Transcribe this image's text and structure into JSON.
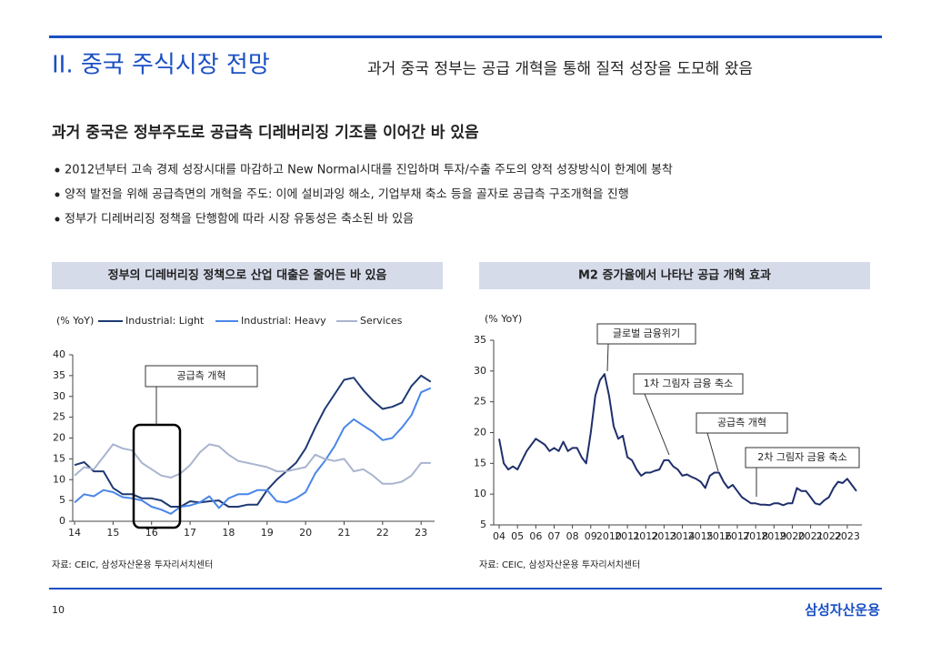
{
  "header": {
    "title": "II. 중국 주식시장 전망",
    "subtitle": "과거 중국 정부는 공급 개혁을 통해 질적 성장을 도모해 왔음"
  },
  "heading": "과거 중국은 정부주도로 공급측 디레버리징 기조를 이어간 바 있음",
  "bullets": [
    "2012년부터 고속 경제 성장시대를 마감하고 New Normal시대를 진입하며 투자/수출 주도의 양적 성장방식이 한계에 봉착",
    "양적 발전을 위해 공급측면의 개혁을 주도: 이에 설비과잉 해소, 기업부채 축소 등을 골자로 공급측 구조개혁을 진행",
    "정부가 디레버리징 정책을 단행함에 따라 시장 유동성은 축소된 바 있음"
  ],
  "chart_data": [
    {
      "type": "line",
      "title": "정부의 디레버리징 정책으로 산업 대출은 줄어든 바 있음",
      "ylabel": "(% YoY)",
      "source": "자료: CEIC, 삼성자산운용 투자리서치센터",
      "x": [
        14,
        14.25,
        14.5,
        14.75,
        15,
        15.25,
        15.5,
        15.75,
        16,
        16.25,
        16.5,
        16.75,
        17,
        17.25,
        17.5,
        17.75,
        18,
        18.25,
        18.5,
        18.75,
        19,
        19.25,
        19.5,
        19.75,
        20,
        20.25,
        20.5,
        20.75,
        21,
        21.25,
        21.5,
        21.75,
        22,
        22.25,
        22.5,
        22.75,
        23,
        23.25
      ],
      "series": [
        {
          "name": "Industrial: Light",
          "color": "#1f3a73",
          "values": [
            13.5,
            14.2,
            12,
            12,
            8,
            6.5,
            6.5,
            5.5,
            5.5,
            5,
            3.5,
            3.5,
            4.8,
            4.5,
            4.8,
            5,
            3.5,
            3.5,
            4,
            4,
            7.5,
            10,
            12,
            14,
            17.5,
            22.5,
            27,
            30.5,
            34,
            34.5,
            31.5,
            29,
            27,
            27.5,
            28.5,
            32.5,
            35,
            33.5
          ]
        },
        {
          "name": "Industrial: Heavy",
          "color": "#4a86e8",
          "values": [
            4.5,
            6.5,
            6,
            7.5,
            7,
            5.8,
            5.5,
            5,
            3.5,
            2.8,
            1.8,
            3.5,
            3.8,
            4.5,
            6,
            3.2,
            5.5,
            6.5,
            6.5,
            7.5,
            7.5,
            4.8,
            4.5,
            5.5,
            7,
            11.5,
            14.5,
            18,
            22.5,
            24.5,
            23,
            21.5,
            19.5,
            20,
            22.5,
            25.5,
            31,
            32
          ]
        },
        {
          "name": "Services",
          "color": "#a9b4cf",
          "values": [
            11,
            13,
            12.5,
            15.5,
            18.5,
            17.5,
            17,
            14,
            12.5,
            11,
            10.5,
            11.5,
            13.5,
            16.5,
            18.5,
            18,
            16,
            14.5,
            14,
            13.5,
            13,
            12,
            12,
            12.5,
            13,
            16,
            15,
            14.5,
            15,
            12,
            12.5,
            11,
            9,
            9,
            9.5,
            11,
            14,
            14
          ]
        }
      ],
      "xlim": [
        14,
        23.35
      ],
      "xticks": [
        14,
        15,
        16,
        17,
        18,
        19,
        20,
        21,
        22,
        23
      ],
      "ylim": [
        0,
        40
      ],
      "yticks": [
        0,
        5,
        10,
        15,
        20,
        25,
        30,
        35,
        40
      ],
      "annotations": [
        "공급측 개혁"
      ]
    },
    {
      "type": "line",
      "title": "M2 증가율에서 나타난 공급 개혁 효과",
      "ylabel": "(% YoY)",
      "source": "자료: CEIC, 삼성자산운용 투자리서치센터",
      "color": "#1f2f6b",
      "x": [
        2004,
        2004.25,
        2004.5,
        2004.75,
        2005,
        2005.25,
        2005.5,
        2005.75,
        2006,
        2006.25,
        2006.5,
        2006.75,
        2007,
        2007.25,
        2007.5,
        2007.75,
        2008,
        2008.25,
        2008.5,
        2008.75,
        2009,
        2009.25,
        2009.5,
        2009.75,
        2010,
        2010.25,
        2010.5,
        2010.75,
        2011,
        2011.25,
        2011.5,
        2011.75,
        2012,
        2012.25,
        2012.5,
        2012.75,
        2013,
        2013.25,
        2013.5,
        2013.75,
        2014,
        2014.25,
        2014.5,
        2014.75,
        2015,
        2015.25,
        2015.5,
        2015.75,
        2016,
        2016.25,
        2016.5,
        2016.75,
        2017,
        2017.25,
        2017.5,
        2017.75,
        2018,
        2018.25,
        2018.5,
        2018.75,
        2019,
        2019.25,
        2019.5,
        2019.75,
        2020,
        2020.25,
        2020.5,
        2020.75,
        2021,
        2021.25,
        2021.5,
        2021.75,
        2022,
        2022.25,
        2022.5,
        2022.75,
        2023,
        2023.25,
        2023.5
      ],
      "values": [
        19,
        15,
        14,
        14.5,
        14,
        15.5,
        17,
        18,
        19,
        18.5,
        18,
        17,
        17.5,
        17,
        18.5,
        17,
        17.5,
        17.5,
        16,
        15,
        20,
        26,
        28.5,
        29.5,
        26,
        21,
        19,
        19.5,
        16,
        15.5,
        14,
        13,
        13.5,
        13.5,
        13.8,
        14,
        15.5,
        15.5,
        14.5,
        14,
        13,
        13.2,
        12.8,
        12.5,
        12,
        11,
        13,
        13.5,
        13.5,
        12,
        11,
        11.5,
        10.5,
        9.5,
        9,
        8.5,
        8.5,
        8.3,
        8.3,
        8.2,
        8.5,
        8.5,
        8.2,
        8.5,
        8.5,
        11,
        10.5,
        10.5,
        9.5,
        8.5,
        8.3,
        9,
        9.5,
        11,
        12,
        11.8,
        12.5,
        11.5,
        10.5
      ],
      "xlim": [
        2003.8,
        2023.8
      ],
      "xticks": [
        {
          "value": 2004,
          "label": "04"
        },
        {
          "value": 2005,
          "label": "05"
        },
        {
          "value": 2006,
          "label": "06"
        },
        {
          "value": 2007,
          "label": "07"
        },
        {
          "value": 2008,
          "label": "08"
        },
        {
          "value": 2009,
          "label": "09"
        },
        2010,
        2011,
        2012,
        2013,
        2014,
        2015,
        2016,
        2017,
        2018,
        2019,
        2020,
        2021,
        2022,
        2023
      ],
      "ylim": [
        5,
        35
      ],
      "yticks": [
        5,
        10,
        15,
        20,
        25,
        30,
        35
      ],
      "annotations": [
        "글로벌 금융위기",
        "1차 그림자 금융 축소",
        "공급측 개혁",
        "2차 그림자 금융 축소"
      ]
    }
  ],
  "footer": {
    "page": "10",
    "brand": "삼성자산운용"
  }
}
